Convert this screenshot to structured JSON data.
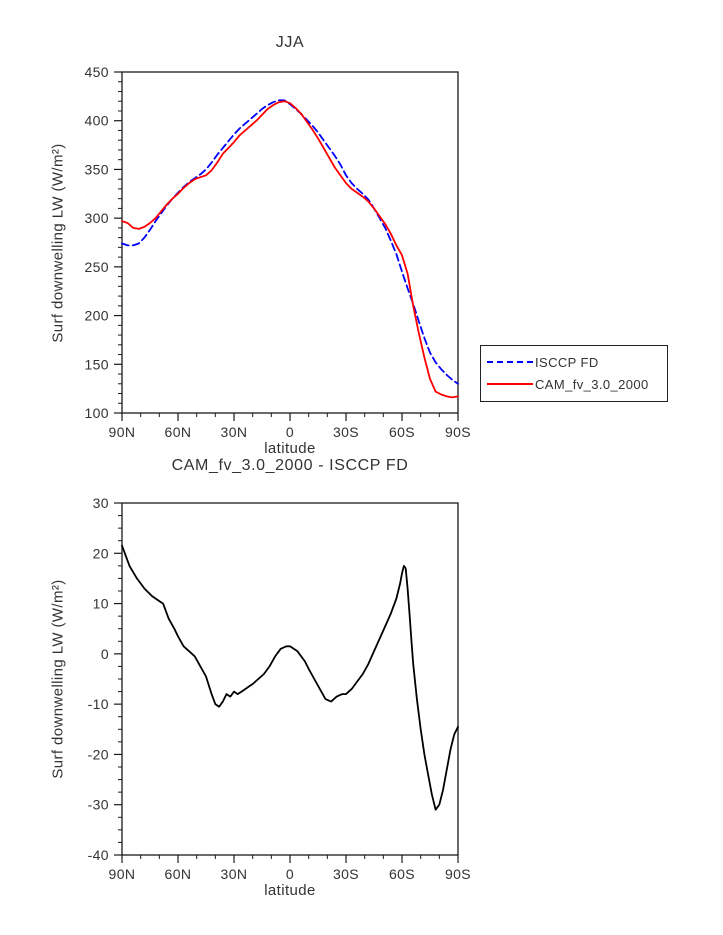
{
  "figure": {
    "background": "#ffffff",
    "text_color": "#333333",
    "frame_color": "#1a1a1a"
  },
  "chart_data": [
    {
      "type": "line",
      "title": "JJA",
      "xlabel": "latitude",
      "ylabel": "Surf downwelling LW (W/m²)",
      "xlim": [
        90,
        -90
      ],
      "ylim": [
        100,
        450
      ],
      "y_ticks": [
        100,
        150,
        200,
        250,
        300,
        350,
        400,
        450
      ],
      "y_minor_step": 10,
      "x_minor_step": 10,
      "x_ticks": [
        {
          "v": 90,
          "label": "90N"
        },
        {
          "v": 60,
          "label": "60N"
        },
        {
          "v": 30,
          "label": "30N"
        },
        {
          "v": 0,
          "label": "0"
        },
        {
          "v": -30,
          "label": "30S"
        },
        {
          "v": -60,
          "label": "60S"
        },
        {
          "v": -90,
          "label": "90S"
        }
      ],
      "grid": false,
      "legend": {
        "position": "outside-right"
      },
      "series": [
        {
          "name": "ISCCP FD",
          "color": "#0000ff",
          "dash": "dashed",
          "lats": [
            90,
            87,
            84,
            81,
            78,
            75,
            72,
            69,
            66,
            63,
            60,
            57,
            54,
            51,
            48,
            45,
            42,
            39,
            36,
            33,
            30,
            27,
            24,
            21,
            18,
            15,
            12,
            9,
            6,
            3,
            0,
            -3,
            -6,
            -9,
            -12,
            -15,
            -18,
            -21,
            -24,
            -27,
            -30,
            -33,
            -36,
            -39,
            -42,
            -45,
            -48,
            -51,
            -54,
            -57,
            -60,
            -63,
            -66,
            -69,
            -72,
            -75,
            -78,
            -81,
            -84,
            -87,
            -90
          ],
          "values": [
            274,
            272,
            272,
            274,
            280,
            288,
            297,
            305,
            313,
            320,
            326,
            332,
            337,
            341,
            345,
            350,
            357,
            365,
            372,
            379,
            386,
            392,
            397,
            402,
            407,
            412,
            416,
            419,
            421,
            421,
            417,
            412,
            407,
            401,
            395,
            388,
            380,
            372,
            364,
            355,
            344,
            336,
            330,
            325,
            319,
            310,
            300,
            290,
            277,
            263,
            245,
            228,
            212,
            194,
            177,
            162,
            152,
            145,
            139,
            134,
            130
          ]
        },
        {
          "name": "CAM_fv_3.0_2000",
          "color": "#ff0000",
          "dash": "solid",
          "lats": [
            90,
            87,
            84,
            81,
            78,
            75,
            72,
            69,
            66,
            63,
            60,
            57,
            54,
            51,
            48,
            45,
            42,
            39,
            36,
            33,
            30,
            27,
            24,
            21,
            18,
            15,
            12,
            9,
            6,
            3,
            0,
            -3,
            -6,
            -9,
            -12,
            -15,
            -18,
            -21,
            -24,
            -27,
            -30,
            -33,
            -36,
            -39,
            -42,
            -45,
            -48,
            -51,
            -54,
            -57,
            -60,
            -63,
            -66,
            -69,
            -72,
            -75,
            -78,
            -81,
            -84,
            -87,
            -90
          ],
          "values": [
            297,
            295,
            290,
            289,
            291,
            295,
            300,
            307,
            314,
            320,
            325,
            331,
            336,
            340,
            342,
            344,
            349,
            357,
            366,
            372,
            378,
            385,
            390,
            395,
            400,
            406,
            412,
            416,
            419,
            420,
            418,
            413,
            407,
            399,
            391,
            382,
            372,
            362,
            352,
            344,
            336,
            330,
            326,
            322,
            317,
            310,
            302,
            294,
            284,
            272,
            262,
            243,
            210,
            182,
            157,
            135,
            122,
            119,
            117,
            116,
            117
          ]
        }
      ]
    },
    {
      "type": "line",
      "title": "CAM_fv_3.0_2000 - ISCCP FD",
      "xlabel": "latitude",
      "ylabel": "Surf downwelling LW (W/m²)",
      "xlim": [
        90,
        -90
      ],
      "ylim": [
        -40,
        30
      ],
      "y_ticks": [
        -40,
        -30,
        -20,
        -10,
        0,
        10,
        20,
        30
      ],
      "y_minor_step": 2.5,
      "x_minor_step": 10,
      "x_ticks": [
        {
          "v": 90,
          "label": "90N"
        },
        {
          "v": 60,
          "label": "60N"
        },
        {
          "v": 30,
          "label": "30N"
        },
        {
          "v": 0,
          "label": "0"
        },
        {
          "v": -30,
          "label": "30S"
        },
        {
          "v": -60,
          "label": "60S"
        },
        {
          "v": -90,
          "label": "90S"
        }
      ],
      "grid": false,
      "series": [
        {
          "name": "CAM_fv_3.0_2000 - ISCCP FD",
          "color": "#000000",
          "dash": "solid",
          "lats": [
            90,
            86,
            82,
            78,
            74,
            70,
            68,
            65,
            62,
            60,
            57,
            54,
            51,
            48,
            45,
            42,
            40,
            38,
            36,
            34,
            32,
            30,
            28,
            26,
            24,
            22,
            20,
            17,
            14,
            11,
            8,
            5,
            2,
            0,
            -2,
            -4,
            -6,
            -8,
            -10,
            -13,
            -16,
            -19,
            -22,
            -25,
            -28,
            -30,
            -33,
            -36,
            -39,
            -42,
            -45,
            -48,
            -51,
            -54,
            -57,
            -59,
            -60,
            -61,
            -62,
            -63,
            -64,
            -65,
            -66,
            -68,
            -70,
            -72,
            -74,
            -76,
            -78,
            -80,
            -82,
            -84,
            -86,
            -88,
            -90
          ],
          "values": [
            21.5,
            17.5,
            15,
            13,
            11.5,
            10.5,
            10,
            7,
            5,
            3.5,
            1.5,
            0.5,
            -0.5,
            -2.5,
            -4.5,
            -8,
            -10,
            -10.5,
            -9.5,
            -8,
            -8.5,
            -7.5,
            -8,
            -7.5,
            -7,
            -6.5,
            -6,
            -5,
            -4,
            -2.5,
            -0.5,
            1,
            1.5,
            1.5,
            1,
            0.5,
            -0.5,
            -1.5,
            -3,
            -5,
            -7,
            -9,
            -9.5,
            -8.5,
            -8,
            -8,
            -7,
            -5.5,
            -4,
            -2,
            0.5,
            3,
            5.5,
            8,
            11,
            14,
            16,
            17.5,
            17,
            13,
            8,
            3,
            -2,
            -9,
            -15,
            -20,
            -24,
            -28,
            -31,
            -30,
            -27,
            -23,
            -19,
            -16,
            -14.5
          ]
        }
      ]
    }
  ]
}
